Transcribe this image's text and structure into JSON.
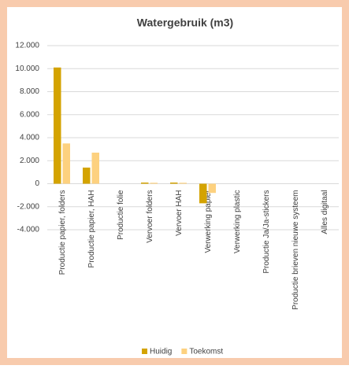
{
  "chart_data": {
    "type": "bar",
    "title": "Watergebruik (m3)",
    "categories": [
      "Productie papier, folders",
      "Productie papier, HAH",
      "Productie folie",
      "Vervoer folders",
      "Vervoer HAH",
      "Verwerking papier",
      "Verwerking plastic",
      "Productie Ja/Ja-stickers",
      "Productie brieven nieuwe systeem",
      "Alles digitaal"
    ],
    "series": [
      {
        "name": "Huidig",
        "color": "#d4a300",
        "values": [
          10100,
          1400,
          0,
          100,
          100,
          -1700,
          0,
          0,
          0,
          0
        ]
      },
      {
        "name": "Toekomst",
        "color": "#fdd17f",
        "values": [
          3500,
          2700,
          0,
          80,
          80,
          -800,
          0,
          0,
          0,
          0
        ]
      }
    ],
    "ylim": [
      -4000,
      12000
    ],
    "yticks": [
      {
        "value": -4000,
        "label": "-4.000"
      },
      {
        "value": -2000,
        "label": "-2.000"
      },
      0,
      {
        "value": 2000,
        "label": "2.000"
      },
      {
        "value": 4000,
        "label": "4.000"
      },
      {
        "value": 6000,
        "label": "6.000"
      },
      {
        "value": 8000,
        "label": "8.000"
      },
      {
        "value": 10000,
        "label": "10.000"
      },
      {
        "value": 12000,
        "label": "12.000"
      }
    ],
    "grid": true,
    "legend": "bottom"
  }
}
